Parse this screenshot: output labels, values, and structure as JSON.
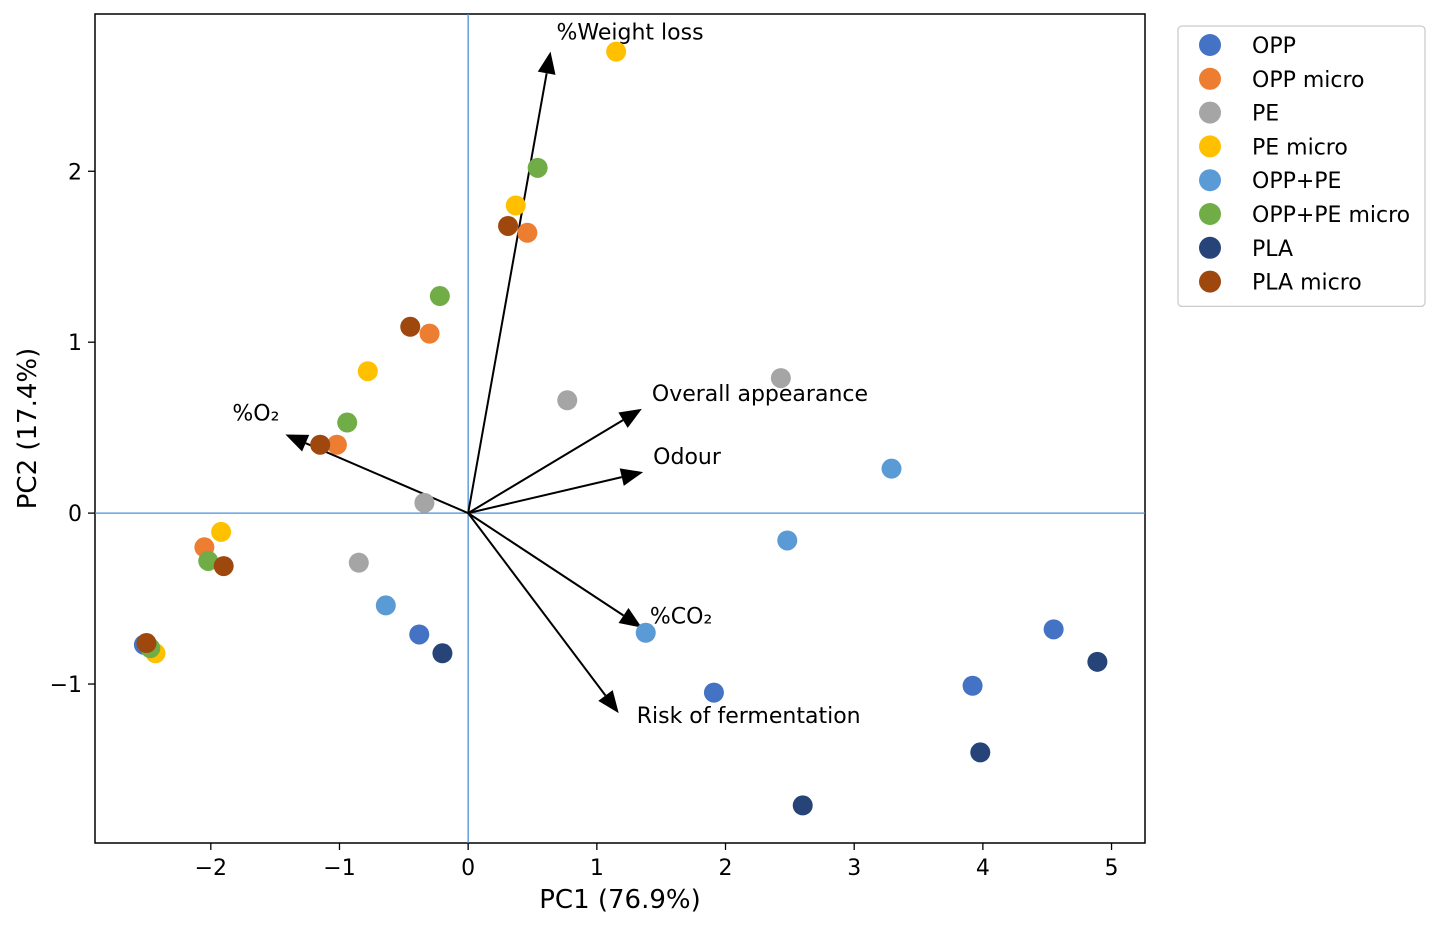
{
  "chart_data": {
    "type": "scatter",
    "subtype": "pca-biplot",
    "xlabel": "PC1 (76.9%)",
    "ylabel": "PC2 (17.4%)",
    "xlim": [
      -2.9,
      5.26
    ],
    "ylim": [
      -1.93,
      2.92
    ],
    "xticks": [
      -2,
      -1,
      0,
      1,
      2,
      3,
      4,
      5
    ],
    "xtick_labels": [
      "−2",
      "−1",
      "0",
      "1",
      "2",
      "3",
      "4",
      "5"
    ],
    "yticks": [
      -1,
      0,
      1,
      2
    ],
    "ytick_labels": [
      "−1",
      "0",
      "1",
      "2"
    ],
    "grid": false,
    "reference_lines": {
      "x": 0,
      "y": 0,
      "color": "#4a90d9"
    },
    "legend_position": "outside-top-right",
    "series": [
      {
        "name": "OPP",
        "color": "#4472c4",
        "points": [
          [
            -2.52,
            -0.77
          ],
          [
            -0.38,
            -0.71
          ],
          [
            1.91,
            -1.05
          ],
          [
            3.92,
            -1.01
          ],
          [
            4.55,
            -0.68
          ]
        ]
      },
      {
        "name": "OPP micro",
        "color": "#ed7d31",
        "points": [
          [
            -2.05,
            -0.2
          ],
          [
            -1.02,
            0.4
          ],
          [
            -0.3,
            1.05
          ],
          [
            0.46,
            1.64
          ]
        ]
      },
      {
        "name": "PE",
        "color": "#a5a5a5",
        "points": [
          [
            -0.85,
            -0.29
          ],
          [
            -0.34,
            0.06
          ],
          [
            0.77,
            0.66
          ],
          [
            2.43,
            0.79
          ]
        ]
      },
      {
        "name": "PE micro",
        "color": "#ffc000",
        "points": [
          [
            -2.43,
            -0.82
          ],
          [
            -1.92,
            -0.11
          ],
          [
            -0.78,
            0.83
          ],
          [
            0.37,
            1.8
          ],
          [
            1.15,
            2.7
          ]
        ]
      },
      {
        "name": "OPP+PE",
        "color": "#5b9bd5",
        "points": [
          [
            -0.64,
            -0.54
          ],
          [
            1.38,
            -0.7
          ],
          [
            2.48,
            -0.16
          ],
          [
            3.29,
            0.26
          ]
        ]
      },
      {
        "name": "OPP+PE micro",
        "color": "#70ad47",
        "points": [
          [
            -2.47,
            -0.79
          ],
          [
            -2.02,
            -0.28
          ],
          [
            -0.94,
            0.53
          ],
          [
            -0.22,
            1.27
          ],
          [
            0.54,
            2.02
          ]
        ]
      },
      {
        "name": "PLA",
        "color": "#264478",
        "points": [
          [
            -0.2,
            -0.82
          ],
          [
            2.6,
            -1.71
          ],
          [
            3.98,
            -1.4
          ],
          [
            4.89,
            -0.87
          ]
        ]
      },
      {
        "name": "PLA micro",
        "color": "#9e480e",
        "points": [
          [
            -2.5,
            -0.76
          ],
          [
            -1.9,
            -0.31
          ],
          [
            -1.15,
            0.4
          ],
          [
            -0.45,
            1.09
          ],
          [
            0.31,
            1.68
          ]
        ]
      }
    ],
    "loadings": [
      {
        "label": "%Weight loss",
        "end": [
          0.64,
          2.7
        ]
      },
      {
        "label": "%O₂",
        "end": [
          -1.42,
          0.46
        ]
      },
      {
        "label": "Overall appearance",
        "end": [
          1.35,
          0.61
        ]
      },
      {
        "label": "Odour",
        "end": [
          1.36,
          0.24
        ]
      },
      {
        "label": "%CO₂",
        "end": [
          1.35,
          -0.67
        ]
      },
      {
        "label": "Risk of fermentation",
        "end": [
          1.17,
          -1.17
        ]
      }
    ]
  }
}
